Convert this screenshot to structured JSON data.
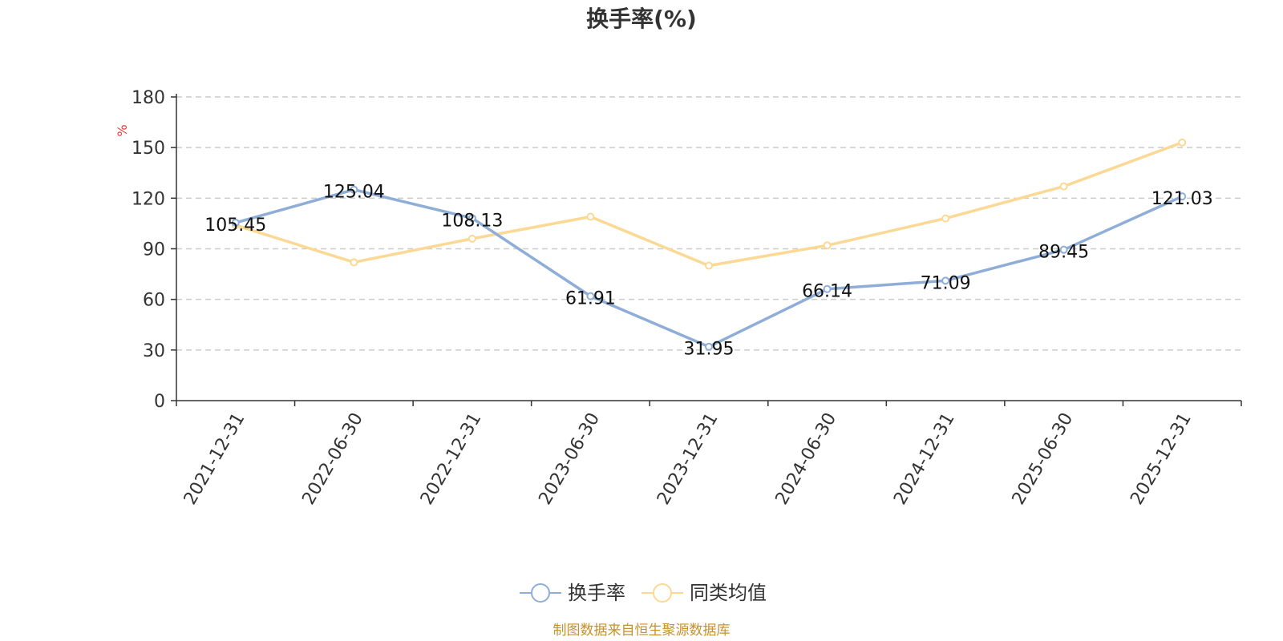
{
  "chart_data": {
    "type": "line",
    "title": "换手率(%)",
    "ylabel": "%",
    "xlabel": "",
    "ylim": [
      0,
      180
    ],
    "yticks": [
      0,
      30,
      60,
      90,
      120,
      150,
      180
    ],
    "grid": true,
    "legend_position": "bottom-center",
    "categories": [
      "2021-12-31",
      "2022-06-30",
      "2022-12-31",
      "2023-06-30",
      "2023-12-31",
      "2024-06-30",
      "2024-12-31",
      "2025-06-30",
      "2025-12-31"
    ],
    "series": [
      {
        "name": "换手率",
        "color": "#8eaed8",
        "values": [
          105.45,
          125.04,
          108.13,
          61.91,
          31.95,
          66.14,
          71.09,
          89.45,
          121.03
        ],
        "labels": [
          "105.45",
          "125.04",
          "108.13",
          "61.91",
          "31.95",
          "66.14",
          "71.09",
          "89.45",
          "121.03"
        ]
      },
      {
        "name": "同类均值",
        "color": "#fbd994",
        "values": [
          104,
          82,
          96,
          109,
          80,
          92,
          108,
          127,
          153
        ]
      }
    ]
  },
  "source_text": "制图数据来自恒生聚源数据库",
  "colors": {
    "axis": "#333333",
    "grid": "#cccccc",
    "unit": "#e8363b",
    "source": "#c8902a"
  }
}
